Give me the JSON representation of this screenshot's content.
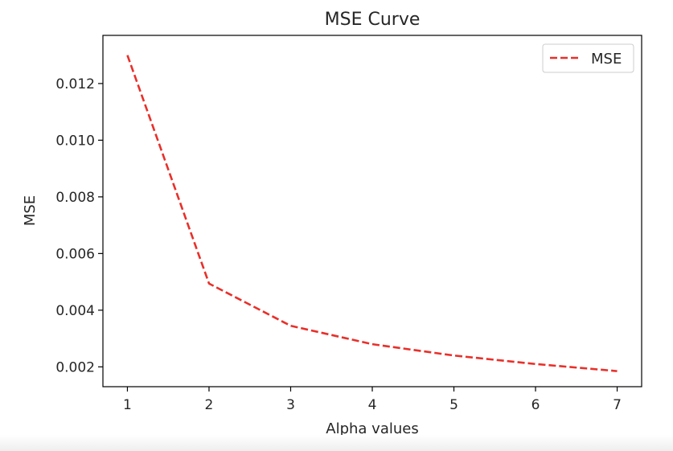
{
  "chart_data": {
    "type": "line",
    "title": "MSE Curve",
    "xlabel": "Alpha values",
    "ylabel": "MSE",
    "x": [
      1,
      2,
      3,
      4,
      5,
      6,
      7
    ],
    "series": [
      {
        "name": "MSE",
        "values": [
          0.013,
          0.00494,
          0.00345,
          0.0028,
          0.0024,
          0.0021,
          0.00185
        ],
        "color": "#e8302a",
        "line_style": "dashed"
      }
    ],
    "xlim": [
      0.7,
      7.3
    ],
    "ylim": [
      0.0013,
      0.0137
    ],
    "xticks": [
      1,
      2,
      3,
      4,
      5,
      6,
      7
    ],
    "yticks": [
      0.002,
      0.004,
      0.006,
      0.008,
      0.01,
      0.012
    ],
    "ytick_labels": [
      "0.002",
      "0.004",
      "0.006",
      "0.008",
      "0.010",
      "0.012"
    ],
    "grid": false,
    "legend_position": "top-right"
  }
}
